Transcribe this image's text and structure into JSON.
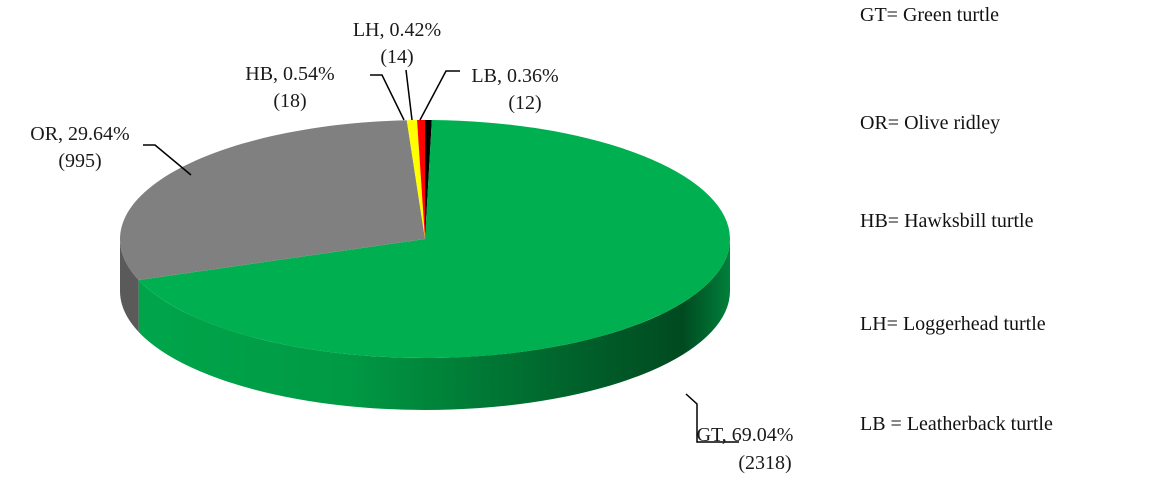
{
  "chart_data": {
    "type": "pie",
    "style": "3d",
    "title": "",
    "slices": [
      {
        "code": "GT",
        "value": 2318,
        "percent": 69.04,
        "label": "GT, 69.04%",
        "count_label": "(2318)",
        "color": "#00b050"
      },
      {
        "code": "OR",
        "value": 995,
        "percent": 29.64,
        "label": "OR, 29.64%",
        "count_label": "(995)",
        "color": "#808080"
      },
      {
        "code": "HB",
        "value": 18,
        "percent": 0.54,
        "label": "HB, 0.54%",
        "count_label": "(18)",
        "color": "#ffff00"
      },
      {
        "code": "LH",
        "value": 14,
        "percent": 0.42,
        "label": "LH, 0.42%",
        "count_label": "(14)",
        "color": "#ff0000"
      },
      {
        "code": "LB",
        "value": 12,
        "percent": 0.36,
        "label": "LB, 0.36%",
        "count_label": "(12)",
        "color": "#000000"
      }
    ]
  },
  "legend": {
    "items": [
      "GT= Green turtle",
      "OR= Olive ridley",
      "HB= Hawksbill turtle",
      "LH= Loggerhead turtle",
      "LB = Leatherback turtle"
    ]
  }
}
